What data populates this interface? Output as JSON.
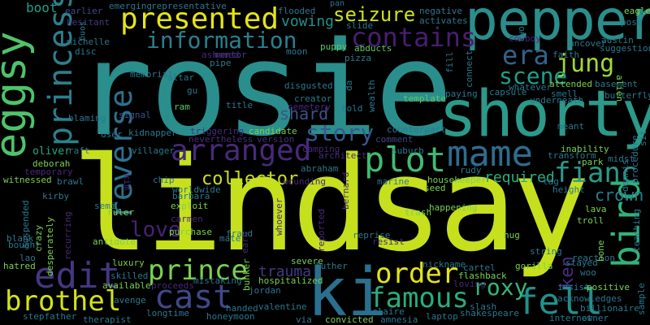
{
  "words": [
    {
      "text": "rosie",
      "color": "#2a8e8c"
    },
    {
      "text": "lindsay",
      "color": "#c6e01e"
    },
    {
      "text": "shorty",
      "color": "#2b9a8a"
    },
    {
      "text": "pepper",
      "color": "#2a8e8c"
    },
    {
      "text": "ki",
      "color": "#2b6f8e"
    },
    {
      "text": "eggsy",
      "color": "#4ec36b"
    },
    {
      "text": "mame",
      "color": "#2f6c8e"
    },
    {
      "text": "princess",
      "color": "#2b7f8e"
    },
    {
      "text": "presented",
      "color": "#e5e419"
    },
    {
      "text": "information",
      "color": "#2b7f8e"
    },
    {
      "text": "contains",
      "color": "#481e6f"
    },
    {
      "text": "arranged",
      "color": "#472a7a"
    },
    {
      "text": "reverse",
      "color": "#2c718e"
    },
    {
      "text": "plot",
      "color": "#3fbc73"
    },
    {
      "text": "bird",
      "color": "#30b37a"
    },
    {
      "text": "fianc",
      "color": "#2a9a89"
    },
    {
      "text": "era",
      "color": "#33628d"
    },
    {
      "text": "jung",
      "color": "#9fd938"
    },
    {
      "text": "scene",
      "color": "#1f9e89"
    },
    {
      "text": "seizure",
      "color": "#cde11d"
    },
    {
      "text": "story",
      "color": "#38598c"
    },
    {
      "text": "collector",
      "color": "#c8e020"
    },
    {
      "text": "love",
      "color": "#482273"
    },
    {
      "text": "edit",
      "color": "#453781"
    },
    {
      "text": "cast",
      "color": "#3f4889"
    },
    {
      "text": "prince",
      "color": "#7ad151"
    },
    {
      "text": "order",
      "color": "#e5e419"
    },
    {
      "text": "famous",
      "color": "#27ad81"
    },
    {
      "text": "fell",
      "color": "#21918c"
    },
    {
      "text": "roxy",
      "color": "#35b779"
    },
    {
      "text": "brothel",
      "color": "#d2e21b"
    },
    {
      "text": "crown",
      "color": "#26828e"
    },
    {
      "text": "ken",
      "color": "#46307e"
    },
    {
      "text": "shard",
      "color": "#3b528b"
    },
    {
      "text": "vowing",
      "color": "#21918c"
    },
    {
      "text": "required",
      "color": "#29af7f"
    },
    {
      "text": "trauma",
      "color": "#443983"
    },
    {
      "text": "boot",
      "color": "#1f9f88"
    },
    {
      "text": "oliver",
      "color": "#22a884"
    },
    {
      "text": "earlier",
      "color": "#3e4a89"
    },
    {
      "text": "hesitant",
      "color": "#453781"
    },
    {
      "text": "pose",
      "color": "#2a788e"
    },
    {
      "text": "eagle",
      "color": "#7ad151"
    },
    {
      "text": "austin",
      "color": "#2a788e"
    },
    {
      "text": "underneath",
      "color": "#2a788e"
    },
    {
      "text": "butterfly",
      "color": "#2a788e"
    },
    {
      "text": "basement",
      "color": "#2a788e"
    },
    {
      "text": "attended",
      "color": "#7ad151"
    },
    {
      "text": "whatever",
      "color": "#2a788e"
    },
    {
      "text": "capsule",
      "color": "#2a788e"
    },
    {
      "text": "smell",
      "color": "#2a788e"
    },
    {
      "text": "template",
      "color": "#5ec962"
    },
    {
      "text": "counterpart",
      "color": "#2a788e"
    },
    {
      "text": "comment",
      "color": "#414487"
    },
    {
      "text": "camping",
      "color": "#482878"
    },
    {
      "text": "architect",
      "color": "#472d7b"
    },
    {
      "text": "candidate",
      "color": "#7ad151"
    },
    {
      "text": "version",
      "color": "#472d7b"
    },
    {
      "text": "nevertheless",
      "color": "#472d7b"
    },
    {
      "text": "triggering",
      "color": "#472d7b"
    },
    {
      "text": "villager",
      "color": "#2a788e"
    },
    {
      "text": "kidnapper",
      "color": "#2a788e"
    },
    {
      "text": "signal",
      "color": "#3b528b"
    },
    {
      "text": "memorial",
      "color": "#2a788e"
    },
    {
      "text": "altar",
      "color": "#2a788e"
    },
    {
      "text": "ashamed",
      "color": "#482878"
    },
    {
      "text": "pipe",
      "color": "#2a788e"
    },
    {
      "text": "mentor",
      "color": "#414487"
    },
    {
      "text": "creator",
      "color": "#2a788e"
    },
    {
      "text": "cemetery",
      "color": "#482878"
    },
    {
      "text": "disgusted",
      "color": "#2a788e"
    },
    {
      "text": "told",
      "color": "#2a788e"
    },
    {
      "text": "title",
      "color": "#2a788e"
    },
    {
      "text": "ram",
      "color": "#5ec962"
    },
    {
      "text": "pizza",
      "color": "#2a788e"
    },
    {
      "text": "puppy",
      "color": "#5ec962"
    },
    {
      "text": "abducts",
      "color": "#5ec962"
    },
    {
      "text": "flooded",
      "color": "#2a788e"
    },
    {
      "text": "emerging",
      "color": "#2a788e"
    },
    {
      "text": "representative",
      "color": "#2a788e"
    },
    {
      "text": "negative",
      "color": "#2a788e"
    },
    {
      "text": "activates",
      "color": "#2a788e"
    },
    {
      "text": "slide",
      "color": "#2a788e"
    },
    {
      "text": "michelle",
      "color": "#2a788e"
    },
    {
      "text": "disc",
      "color": "#2a788e"
    },
    {
      "text": "deborah",
      "color": "#7ad151"
    },
    {
      "text": "temporary",
      "color": "#482878"
    },
    {
      "text": "witnessed",
      "color": "#7ad151"
    },
    {
      "text": "brawl",
      "color": "#2a788e"
    },
    {
      "text": "kirby",
      "color": "#2a788e"
    },
    {
      "text": "blank",
      "color": "#2a788e"
    },
    {
      "text": "bought",
      "color": "#2a788e"
    },
    {
      "text": "lao",
      "color": "#2a788e"
    },
    {
      "text": "hatred",
      "color": "#7ad151"
    },
    {
      "text": "antidote",
      "color": "#7ad151"
    },
    {
      "text": "ruler",
      "color": "#7ad151"
    },
    {
      "text": "semi",
      "color": "#2a788e"
    },
    {
      "text": "chip",
      "color": "#2a788e"
    },
    {
      "text": "barbara",
      "color": "#2a788e"
    },
    {
      "text": "exploit",
      "color": "#7ad151"
    },
    {
      "text": "carmen",
      "color": "#482878"
    },
    {
      "text": "purchase",
      "color": "#7ad151"
    },
    {
      "text": "worldwide",
      "color": "#2a788e"
    },
    {
      "text": "fraud",
      "color": "#2a788e"
    },
    {
      "text": "mate",
      "color": "#2a788e"
    },
    {
      "text": "luxury",
      "color": "#7ad151"
    },
    {
      "text": "skilled",
      "color": "#2a788e"
    },
    {
      "text": "available",
      "color": "#7ad151"
    },
    {
      "text": "proceeds",
      "color": "#482878"
    },
    {
      "text": "mistaking",
      "color": "#2a788e"
    },
    {
      "text": "avenge",
      "color": "#2a788e"
    },
    {
      "text": "therapist",
      "color": "#2a788e"
    },
    {
      "text": "stepfather",
      "color": "#2a788e"
    },
    {
      "text": "longtime",
      "color": "#2a788e"
    },
    {
      "text": "honeymoon",
      "color": "#2a788e"
    },
    {
      "text": "handed",
      "color": "#2a788e"
    },
    {
      "text": "valentine",
      "color": "#2a788e"
    },
    {
      "text": "via",
      "color": "#2a788e"
    },
    {
      "text": "convicted",
      "color": "#7ad151"
    },
    {
      "text": "amnesia",
      "color": "#2a788e"
    },
    {
      "text": "laptop",
      "color": "#2a788e"
    },
    {
      "text": "shakespeare",
      "color": "#2a788e"
    },
    {
      "text": "internet",
      "color": "#2a788e"
    },
    {
      "text": "owner",
      "color": "#2a788e"
    },
    {
      "text": "billionaire",
      "color": "#2a788e"
    },
    {
      "text": "acknowledges",
      "color": "#2a788e"
    },
    {
      "text": "positive",
      "color": "#7ad151"
    },
    {
      "text": "insist",
      "color": "#2a788e"
    },
    {
      "text": "woo",
      "color": "#2a788e"
    },
    {
      "text": "reaction",
      "color": "#2a788e"
    },
    {
      "text": "stayed",
      "color": "#2a788e"
    },
    {
      "text": "bone",
      "color": "#7ad151"
    },
    {
      "text": "troll",
      "color": "#7ad151"
    },
    {
      "text": "lava",
      "color": "#7ad151"
    },
    {
      "text": "park",
      "color": "#7ad151"
    },
    {
      "text": "midst",
      "color": "#2a788e"
    },
    {
      "text": "inability",
      "color": "#7ad151"
    },
    {
      "text": "meant",
      "color": "#2a788e"
    },
    {
      "text": "transform",
      "color": "#2a788e"
    },
    {
      "text": "tag",
      "color": "#2a788e"
    },
    {
      "text": "height",
      "color": "#2a788e"
    },
    {
      "text": "flashback",
      "color": "#7ad151"
    },
    {
      "text": "cartel",
      "color": "#2a788e"
    },
    {
      "text": "gorilla",
      "color": "#7ad151"
    },
    {
      "text": "hug",
      "color": "#7ad151"
    },
    {
      "text": "string",
      "color": "#2a788e"
    },
    {
      "text": "reprise",
      "color": "#2a788e"
    },
    {
      "text": "resist",
      "color": "#482878"
    },
    {
      "text": "happening",
      "color": "#7ad151"
    },
    {
      "text": "trash",
      "color": "#7ad151"
    },
    {
      "text": "marine",
      "color": "#2a788e"
    },
    {
      "text": "seed",
      "color": "#7ad151"
    },
    {
      "text": "housekeeper",
      "color": "#7ad151"
    },
    {
      "text": "rudy",
      "color": "#2a788e"
    },
    {
      "text": "suburb",
      "color": "#2a788e"
    },
    {
      "text": "abraham",
      "color": "#2a788e"
    },
    {
      "text": "wounding",
      "color": "#482878"
    },
    {
      "text": "severe",
      "color": "#7ad151"
    },
    {
      "text": "hospitalized",
      "color": "#7ad151"
    },
    {
      "text": "jordan",
      "color": "#2a788e"
    },
    {
      "text": "luther",
      "color": "#2a788e"
    },
    {
      "text": "nickname",
      "color": "#2a788e"
    },
    {
      "text": "loving",
      "color": "#482878"
    },
    {
      "text": "slash",
      "color": "#2a788e"
    },
    {
      "text": "claire",
      "color": "#2a788e"
    },
    {
      "text": "uncover",
      "color": "#2a788e"
    },
    {
      "text": "suggestion",
      "color": "#2a788e"
    },
    {
      "text": "faith",
      "color": "#2a788e"
    },
    {
      "text": "cowboy",
      "color": "#482878"
    },
    {
      "text": "paying",
      "color": "#2a788e"
    },
    {
      "text": "pan",
      "color": "#2a788e"
    },
    {
      "text": "moon",
      "color": "#2a788e"
    },
    {
      "text": "user",
      "color": "#2a788e"
    },
    {
      "text": "raft",
      "color": "#2a788e"
    },
    {
      "text": "blaming",
      "color": "#2a788e"
    },
    {
      "text": "gu",
      "color": "#2a788e"
    },
    {
      "text": "da",
      "color": "#2a788e"
    },
    {
      "text": "wealth",
      "color": "#2a788e"
    },
    {
      "text": "connect",
      "color": "#2a788e"
    },
    {
      "text": "fill",
      "color": "#2a788e"
    },
    {
      "text": "two",
      "color": "#2a788e"
    },
    {
      "text": "alien",
      "color": "#7ad151"
    },
    {
      "text": "dennis",
      "color": "#2a788e"
    },
    {
      "text": "procedure",
      "color": "#2a788e"
    },
    {
      "text": "sit",
      "color": "#2a788e"
    },
    {
      "text": "teaching",
      "color": "#2a788e"
    },
    {
      "text": "sample",
      "color": "#2a788e"
    },
    {
      "text": "kim",
      "color": "#482878"
    },
    {
      "text": "whoever",
      "color": "#482878"
    },
    {
      "text": "earn",
      "color": "#482878"
    },
    {
      "text": "bunker",
      "color": "#7ad151"
    },
    {
      "text": "reported",
      "color": "#482878"
    },
    {
      "text": "bernard",
      "color": "#482878"
    },
    {
      "text": "crazy",
      "color": "#7ad151"
    },
    {
      "text": "desperately",
      "color": "#7ad151"
    },
    {
      "text": "recurring",
      "color": "#482878"
    },
    {
      "text": "suspended",
      "color": "#2a788e"
    },
    {
      "text": "song",
      "color": "#2a788e"
    }
  ]
}
